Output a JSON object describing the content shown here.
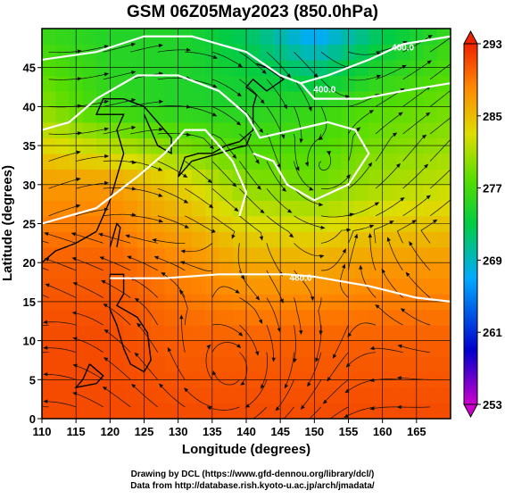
{
  "chart_data": {
    "type": "heatmap",
    "title": "GSM 06Z05May2023 (850.0hPa)",
    "xlabel": "Longitude (degrees)",
    "ylabel": "Latitude  (degrees)",
    "xlim": [
      110,
      170
    ],
    "ylim": [
      0,
      50
    ],
    "x_ticks": [
      "110",
      "115",
      "120",
      "125",
      "130",
      "135",
      "140",
      "145",
      "150",
      "155",
      "160",
      "165"
    ],
    "y_ticks": [
      "0",
      "5",
      "10",
      "15",
      "20",
      "25",
      "30",
      "35",
      "40",
      "45"
    ],
    "colorbar": {
      "range": [
        253,
        293
      ],
      "ticks": [
        "293",
        "285",
        "277",
        "269",
        "261",
        "253"
      ]
    },
    "contour_labels": [
      "400.0",
      "400.0",
      "480.0"
    ],
    "temperature_field_K": {
      "description": "approximate 850hPa temperature values read from colorbar",
      "grid_lon": [
        110,
        120,
        130,
        140,
        150,
        160,
        170
      ],
      "grid_lat": [
        50,
        40,
        30,
        20,
        10,
        0
      ],
      "values": [
        [
          276,
          275,
          275,
          272,
          266,
          272,
          276
        ],
        [
          280,
          276,
          275,
          275,
          276,
          278,
          279
        ],
        [
          287,
          287,
          284,
          280,
          279,
          281,
          282
        ],
        [
          290,
          290,
          288,
          286,
          286,
          287,
          287
        ],
        [
          291,
          291,
          290,
          290,
          290,
          290,
          290
        ],
        [
          291,
          291,
          291,
          291,
          291,
          291,
          291
        ]
      ]
    }
  },
  "credits": {
    "drawing": "Drawing by DCL (https://www.gfd-dennou.org/library/dcl/)",
    "data": "Data from http://database.rish.kyoto-u.ac.jp/arch/jmadata/"
  }
}
